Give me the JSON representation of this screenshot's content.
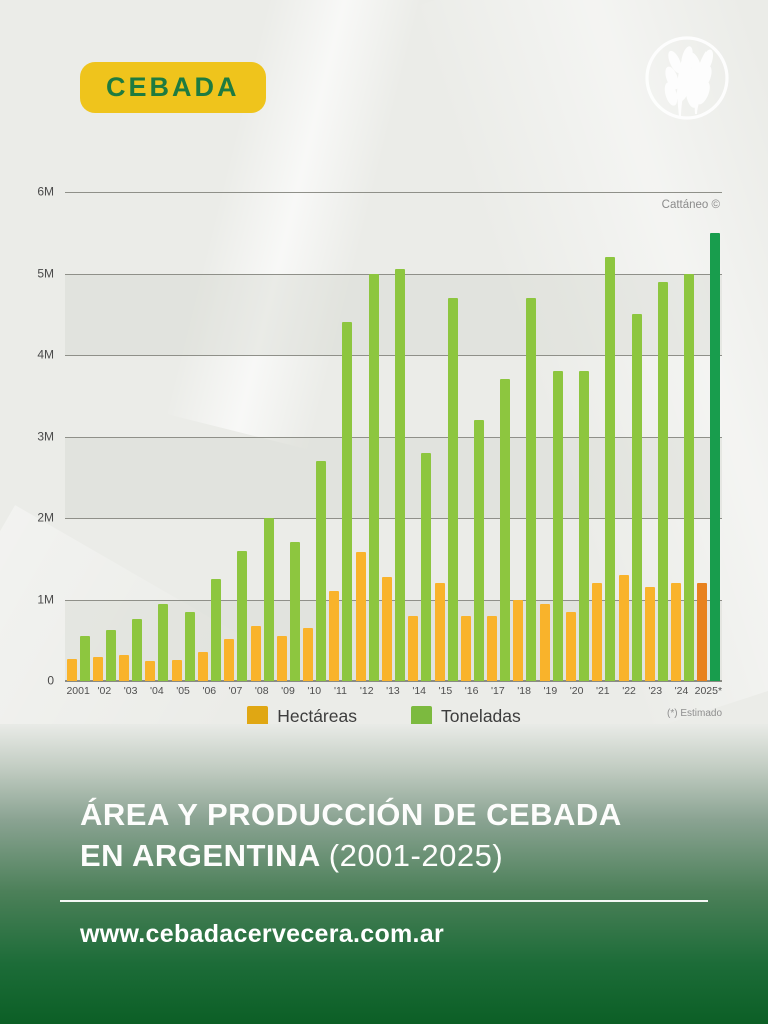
{
  "badge": {
    "label": "CEBADA"
  },
  "watermark": "Cattáneo ©",
  "footnote": "(*) Estimado",
  "legend": {
    "items": [
      {
        "label": "Hectáreas",
        "color": "#e0a713"
      },
      {
        "label": "Toneladas",
        "color": "#7cba3f"
      }
    ]
  },
  "title": {
    "line1": "ÁREA Y PRODUCCIÓN DE CEBADA",
    "line2_bold": "EN ARGENTINA ",
    "line2_light": "(2001-2025)"
  },
  "website": "www.cebadacervecera.com.ar",
  "chart_data": {
    "type": "bar",
    "title": "Área y producción de cebada en Argentina (2001-2025)",
    "xlabel": "",
    "ylabel": "",
    "unit": "millions",
    "ylim_millions": [
      0,
      6
    ],
    "ytick_labels": [
      "6M",
      "5M",
      "4M",
      "3M",
      "2M",
      "1M",
      "0"
    ],
    "grid": "horizontal, alternating shaded bands",
    "legend_position": "bottom",
    "categories": [
      "2001",
      "'02",
      "'03",
      "'04",
      "'05",
      "'06",
      "'07",
      "'08",
      "'09",
      "'10",
      "'11",
      "'12",
      "'13",
      "'14",
      "'15",
      "'16",
      "'17",
      "'18",
      "'19",
      "'20",
      "'21",
      "'22",
      "'23",
      "'24",
      "2025*"
    ],
    "series": [
      {
        "name": "Hectáreas",
        "color": "#f9b32b",
        "final_year_color": "#e8821e",
        "values_millions": [
          0.27,
          0.3,
          0.32,
          0.25,
          0.26,
          0.35,
          0.52,
          0.68,
          0.55,
          0.65,
          1.1,
          1.58,
          1.28,
          0.8,
          1.2,
          0.8,
          0.8,
          1.0,
          0.95,
          0.85,
          1.2,
          1.3,
          1.15,
          1.2,
          1.2
        ]
      },
      {
        "name": "Toneladas",
        "color": "#8dc63f",
        "final_year_color": "#189d4d",
        "values_millions": [
          0.55,
          0.62,
          0.76,
          0.95,
          0.85,
          1.25,
          1.6,
          2.0,
          1.7,
          2.7,
          4.4,
          5.0,
          5.05,
          2.8,
          4.7,
          3.2,
          3.7,
          4.7,
          3.8,
          3.8,
          5.2,
          4.5,
          4.9,
          5.0,
          5.5
        ]
      }
    ],
    "annotations": [
      "Cattáneo ©",
      "(*) Estimado"
    ]
  }
}
